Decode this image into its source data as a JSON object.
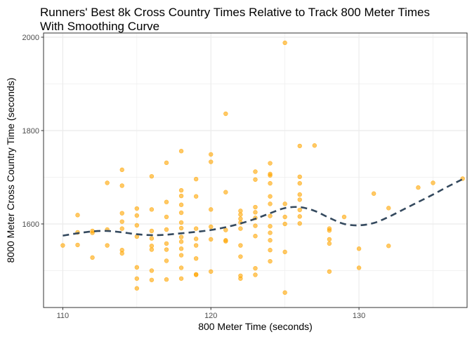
{
  "chart_data": {
    "type": "scatter",
    "title_line1": "Runners' Best 8k Cross Country Times Relative to Track 800 Meter Times",
    "title_line2": "With Smoothing Curve",
    "xlabel": "800 Meter Time (seconds)",
    "ylabel": "8000 Meter Cross Country Time (seconds)",
    "xlim": [
      108.7,
      137.3
    ],
    "ylim": [
      1421,
      2009
    ],
    "x_ticks": [
      110,
      120,
      130
    ],
    "y_ticks": [
      1600,
      1800,
      2000
    ],
    "grid": true,
    "legend": "none",
    "colors": {
      "points": "#FFA500",
      "smooth": "#34495E",
      "grid": "#EBEBEB",
      "panel_border": "#333333"
    },
    "points": [
      [
        110,
        1554
      ],
      [
        111,
        1619
      ],
      [
        111,
        1582
      ],
      [
        111,
        1555
      ],
      [
        112,
        1528
      ],
      [
        112,
        1581
      ],
      [
        112,
        1585
      ],
      [
        113,
        1688
      ],
      [
        113,
        1588
      ],
      [
        113,
        1554
      ],
      [
        114,
        1716
      ],
      [
        114,
        1682
      ],
      [
        114,
        1623
      ],
      [
        114,
        1605
      ],
      [
        114,
        1590
      ],
      [
        114,
        1544
      ],
      [
        114,
        1537
      ],
      [
        115,
        1633
      ],
      [
        115,
        1618
      ],
      [
        115,
        1597
      ],
      [
        115,
        1573
      ],
      [
        115,
        1507
      ],
      [
        115,
        1483
      ],
      [
        115,
        1462
      ],
      [
        116,
        1702
      ],
      [
        116,
        1631
      ],
      [
        116,
        1585
      ],
      [
        116,
        1569
      ],
      [
        116,
        1553
      ],
      [
        116,
        1545
      ],
      [
        116,
        1500
      ],
      [
        116,
        1480
      ],
      [
        117,
        1731
      ],
      [
        117,
        1647
      ],
      [
        117,
        1615
      ],
      [
        117,
        1588
      ],
      [
        117,
        1558
      ],
      [
        117,
        1545
      ],
      [
        117,
        1521
      ],
      [
        117,
        1481
      ],
      [
        118,
        1756
      ],
      [
        118,
        1672
      ],
      [
        118,
        1660
      ],
      [
        118,
        1641
      ],
      [
        118,
        1624
      ],
      [
        118,
        1603
      ],
      [
        118,
        1591
      ],
      [
        118,
        1572
      ],
      [
        118,
        1562
      ],
      [
        118,
        1547
      ],
      [
        118,
        1533
      ],
      [
        118,
        1506
      ],
      [
        118,
        1483
      ],
      [
        119,
        1696
      ],
      [
        119,
        1659
      ],
      [
        119,
        1590
      ],
      [
        119,
        1568
      ],
      [
        119,
        1554
      ],
      [
        119,
        1526
      ],
      [
        119,
        1492
      ],
      [
        119,
        1491
      ],
      [
        120,
        1749
      ],
      [
        120,
        1733
      ],
      [
        120,
        1631
      ],
      [
        120,
        1594
      ],
      [
        120,
        1567
      ],
      [
        120,
        1498
      ],
      [
        121,
        1836
      ],
      [
        121,
        1668
      ],
      [
        121,
        1587
      ],
      [
        121,
        1565
      ],
      [
        121,
        1563
      ],
      [
        122,
        1628
      ],
      [
        122,
        1620
      ],
      [
        122,
        1611
      ],
      [
        122,
        1603
      ],
      [
        122,
        1590
      ],
      [
        122,
        1554
      ],
      [
        122,
        1530
      ],
      [
        122,
        1489
      ],
      [
        122,
        1483
      ],
      [
        123,
        1712
      ],
      [
        123,
        1695
      ],
      [
        123,
        1636
      ],
      [
        123,
        1625
      ],
      [
        123,
        1613
      ],
      [
        123,
        1596
      ],
      [
        123,
        1574
      ],
      [
        123,
        1505
      ],
      [
        123,
        1491
      ],
      [
        124,
        1730
      ],
      [
        124,
        1707
      ],
      [
        124,
        1704
      ],
      [
        124,
        1687
      ],
      [
        124,
        1659
      ],
      [
        124,
        1643
      ],
      [
        124,
        1617
      ],
      [
        124,
        1595
      ],
      [
        124,
        1581
      ],
      [
        124,
        1565
      ],
      [
        124,
        1544
      ],
      [
        124,
        1520
      ],
      [
        125,
        1988
      ],
      [
        125,
        1643
      ],
      [
        125,
        1615
      ],
      [
        125,
        1600
      ],
      [
        125,
        1540
      ],
      [
        125,
        1453
      ],
      [
        126,
        1767
      ],
      [
        126,
        1701
      ],
      [
        126,
        1687
      ],
      [
        126,
        1663
      ],
      [
        126,
        1652
      ],
      [
        126,
        1630
      ],
      [
        126,
        1616
      ],
      [
        126,
        1601
      ],
      [
        127,
        1768
      ],
      [
        128,
        1590
      ],
      [
        128,
        1586
      ],
      [
        128,
        1567
      ],
      [
        128,
        1558
      ],
      [
        128,
        1498
      ],
      [
        129,
        1615
      ],
      [
        130,
        1547
      ],
      [
        130,
        1506
      ],
      [
        131,
        1665
      ],
      [
        132,
        1634
      ],
      [
        132,
        1553
      ],
      [
        134,
        1678
      ],
      [
        135,
        1688
      ],
      [
        137,
        1697
      ]
    ],
    "smooth": {
      "name": "loess",
      "x": [
        110,
        111,
        112,
        113,
        114,
        115,
        116,
        117,
        118,
        119,
        120,
        121,
        122,
        123,
        124,
        125,
        126,
        127,
        128,
        129,
        130,
        131,
        132,
        133,
        134,
        135,
        136,
        137
      ],
      "y": [
        1575,
        1580,
        1584,
        1585,
        1582,
        1578,
        1576,
        1577,
        1580,
        1583,
        1587,
        1593,
        1601,
        1611,
        1623,
        1634,
        1636,
        1628,
        1613,
        1600,
        1597,
        1602,
        1615,
        1631,
        1647,
        1663,
        1680,
        1696
      ]
    }
  }
}
